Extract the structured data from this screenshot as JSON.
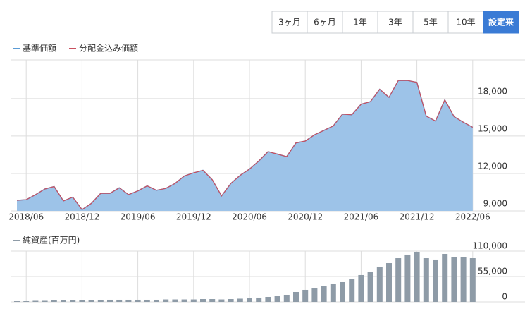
{
  "range_buttons": {
    "options": [
      "3ヶ月",
      "6ヶ月",
      "1年",
      "3年",
      "5年",
      "10年",
      "設定来"
    ],
    "selected": 6
  },
  "chart_data": [
    {
      "type": "area",
      "categories": [
        null,
        "2018/06",
        null,
        null,
        null,
        null,
        null,
        "2018/12",
        null,
        null,
        null,
        null,
        null,
        "2019/06",
        null,
        null,
        null,
        null,
        null,
        "2019/12",
        null,
        null,
        null,
        null,
        null,
        "2020/06",
        null,
        null,
        null,
        null,
        null,
        "2020/12",
        null,
        null,
        null,
        null,
        null,
        "2021/06",
        null,
        null,
        null,
        null,
        null,
        "2021/12",
        null,
        null,
        null,
        null,
        null,
        "2022/06"
      ],
      "series": [
        {
          "name": "基準価額",
          "color": "#5b9bd5",
          "fill": "#9dc3e8",
          "values": [
            9850,
            9900,
            10300,
            10750,
            10950,
            9800,
            10100,
            9100,
            9600,
            10400,
            10400,
            10850,
            10300,
            10600,
            11000,
            10650,
            10800,
            11200,
            11800,
            12050,
            12250,
            11500,
            10200,
            11200,
            11850,
            12350,
            13000,
            13750,
            13550,
            13350,
            14450,
            14600,
            15100,
            15450,
            15800,
            16750,
            16700,
            17550,
            17750,
            18750,
            18100,
            19450,
            19450,
            19300,
            16600,
            16200,
            17900,
            16550,
            16100,
            15700
          ]
        },
        {
          "name": "分配金込み価額",
          "color": "#c9505f",
          "values": [
            9850,
            9900,
            10300,
            10750,
            10950,
            9800,
            10100,
            9100,
            9600,
            10400,
            10400,
            10850,
            10300,
            10600,
            11000,
            10650,
            10800,
            11200,
            11800,
            12050,
            12250,
            11500,
            10200,
            11200,
            11850,
            12350,
            13000,
            13750,
            13550,
            13350,
            14450,
            14600,
            15100,
            15450,
            15800,
            16750,
            16700,
            17550,
            17750,
            18750,
            18100,
            19450,
            19450,
            19300,
            16600,
            16200,
            17900,
            16550,
            16100,
            15700
          ]
        }
      ],
      "ylim": [
        9000,
        21100
      ],
      "yticks": [
        {
          "value": 9000,
          "label": "9,000"
        },
        {
          "value": 12000,
          "label": "12,000"
        },
        {
          "value": 15000,
          "label": "15,000"
        },
        {
          "value": 18000,
          "label": "18,000"
        }
      ],
      "grid": true
    },
    {
      "type": "bar",
      "series": [
        {
          "name": "純資産(百万円)",
          "color": "#8e9ba7",
          "values": [
            1500,
            1500,
            2300,
            2300,
            3100,
            3100,
            3100,
            3100,
            3800,
            3800,
            4600,
            4600,
            4600,
            4600,
            4600,
            4600,
            5300,
            5300,
            5300,
            5300,
            6100,
            6100,
            5300,
            6100,
            6900,
            7600,
            9200,
            10700,
            12200,
            15300,
            21400,
            26000,
            29000,
            33600,
            38200,
            42800,
            48900,
            58100,
            65700,
            76400,
            84000,
            94700,
            102400,
            107000,
            94700,
            91700,
            103900,
            96300,
            96300,
            94700
          ]
        }
      ],
      "ylim": [
        0,
        110000
      ],
      "yticks": [
        0,
        {
          "value": 55000,
          "label": "55,000"
        },
        {
          "value": 110000,
          "label": "110,000"
        }
      ],
      "grid": true
    }
  ]
}
